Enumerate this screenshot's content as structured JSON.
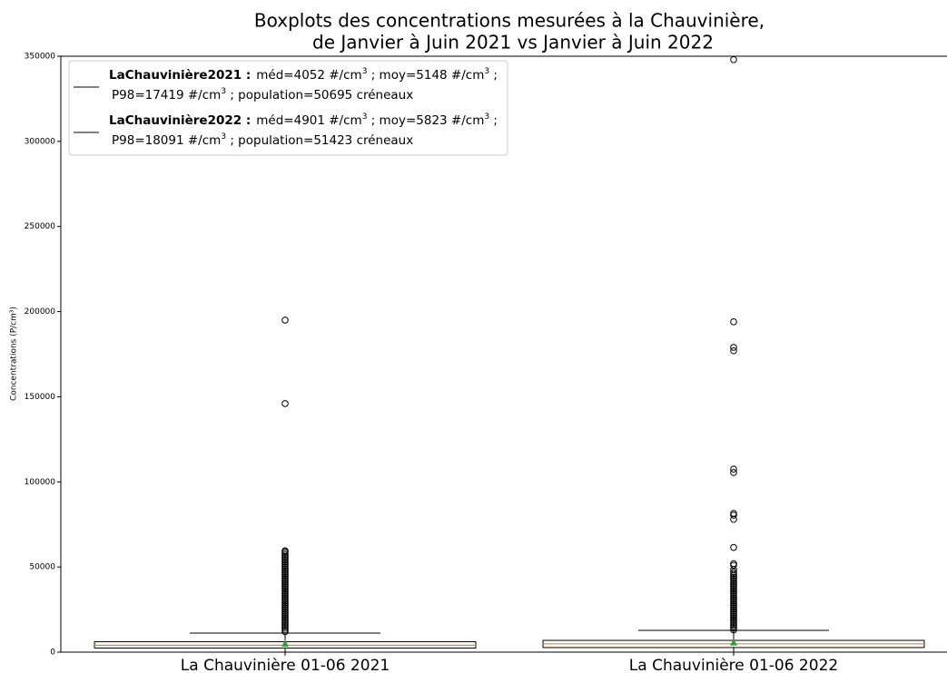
{
  "chart_data": {
    "type": "boxplot",
    "title": [
      "Boxplots des concentrations mesurées à la Chauvinière,",
      "de Janvier à Juin 2021 vs Janvier à Juin 2022"
    ],
    "ylabel": "Concentrations (P/cm³)",
    "categories": [
      "La Chauvinière 01-06 2021",
      "La Chauvinière 01-06 2022"
    ],
    "ylim": [
      0,
      350000
    ],
    "yticks": [
      0,
      50000,
      100000,
      150000,
      200000,
      250000,
      300000,
      350000
    ],
    "box_color": "#000000",
    "median_color": "#ff7f0e",
    "mean_color": "#2ca02c",
    "legend_color": "#000000",
    "series": [
      {
        "name": "LaChauvinière2021 :",
        "legend_lines": [
          [
            "méd=4052 #/cm",
            "3",
            " ; moy=5148 #/cm",
            "3",
            " ;"
          ],
          [
            "P98=17419 #/cm",
            "3",
            " ; population=50695 créneaux"
          ]
        ],
        "whislo": 0,
        "q1": 2400,
        "median": 4052,
        "q3": 6100,
        "whishi": 11200,
        "mean": 5148,
        "fliers": [
          12000,
          13000,
          14000,
          15000,
          16000,
          17000,
          18000,
          19000,
          20000,
          21000,
          22000,
          23000,
          24000,
          25000,
          26000,
          27000,
          28000,
          29000,
          30000,
          31000,
          32000,
          33000,
          34000,
          35000,
          36000,
          37000,
          38000,
          39000,
          40000,
          41000,
          42000,
          43000,
          44000,
          45000,
          46000,
          47000,
          48000,
          49000,
          50000,
          51000,
          52000,
          53000,
          54000,
          55000,
          56000,
          57000,
          58000,
          59000,
          59500,
          146000,
          195000
        ]
      },
      {
        "name": "LaChauvinière2022 :",
        "legend_lines": [
          [
            "méd=4901 #/cm",
            "3",
            " ; moy=5823 #/cm",
            "3",
            " ;"
          ],
          [
            "P98=18091 #/cm",
            "3",
            " ; population=51423 créneaux"
          ]
        ],
        "whislo": 0,
        "q1": 2700,
        "median": 4901,
        "q3": 6900,
        "whishi": 12800,
        "mean": 5823,
        "fliers": [
          13000,
          14000,
          15000,
          16000,
          17000,
          18000,
          19000,
          20000,
          21000,
          22000,
          23000,
          24000,
          25000,
          26000,
          27000,
          28000,
          29000,
          30000,
          31000,
          32000,
          33000,
          34000,
          35000,
          36000,
          37000,
          38000,
          39000,
          40000,
          41000,
          42000,
          43000,
          44000,
          45000,
          46000,
          47000,
          48500,
          51000,
          52000,
          61500,
          78000,
          80500,
          81500,
          105500,
          107500,
          177000,
          179000,
          194000,
          348000
        ]
      }
    ]
  }
}
